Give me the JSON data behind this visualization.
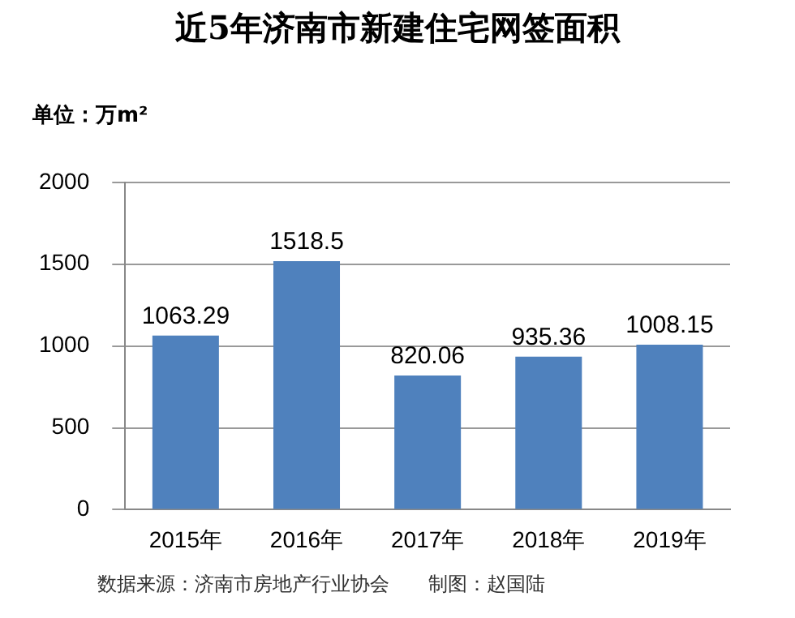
{
  "chart_data": {
    "type": "bar",
    "title": "近5年济南市新建住宅网签面积",
    "categories": [
      "2015年",
      "2016年",
      "2017年",
      "2018年",
      "2019年"
    ],
    "values": [
      1063.29,
      1518.5,
      820.06,
      935.36,
      1008.15
    ],
    "color": "#4f81bd",
    "ylim": [
      0,
      2000
    ],
    "yticks": [
      0,
      500,
      1000,
      1500,
      2000
    ],
    "grid": "y",
    "data_labels": true,
    "annotations": [
      "单位：万m²",
      "数据来源：济南市房地产行业协会　　制图：赵国陆"
    ]
  }
}
